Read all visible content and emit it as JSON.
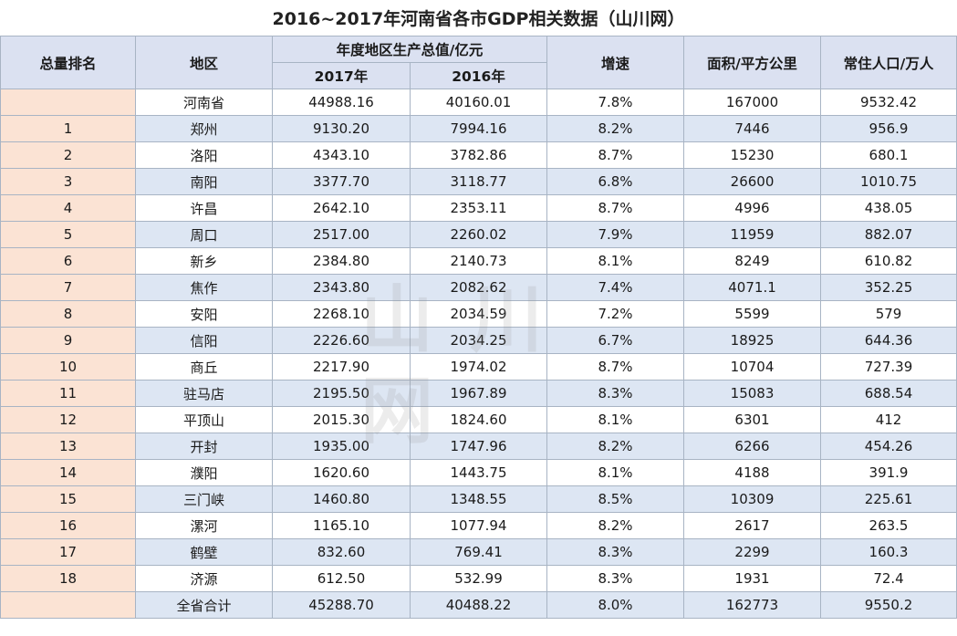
{
  "title": "2016~2017年河南省各市GDP相关数据（山川网）",
  "watermark": "山川网",
  "headers": {
    "rank": "总量排名",
    "region": "地区",
    "gdp_group": "年度地区生产总值/亿元",
    "y2017": "2017年",
    "y2016": "2016年",
    "growth": "增速",
    "area": "面积/平方公里",
    "population": "常住人口/万人"
  },
  "rows": [
    {
      "rank": "",
      "region": "河南省",
      "y2017": "44988.16",
      "y2016": "40160.01",
      "growth": "7.8%",
      "area": "167000",
      "population": "9532.42"
    },
    {
      "rank": "1",
      "region": "郑州",
      "y2017": "9130.20",
      "y2016": "7994.16",
      "growth": "8.2%",
      "area": "7446",
      "population": "956.9"
    },
    {
      "rank": "2",
      "region": "洛阳",
      "y2017": "4343.10",
      "y2016": "3782.86",
      "growth": "8.7%",
      "area": "15230",
      "population": "680.1"
    },
    {
      "rank": "3",
      "region": "南阳",
      "y2017": "3377.70",
      "y2016": "3118.77",
      "growth": "6.8%",
      "area": "26600",
      "population": "1010.75"
    },
    {
      "rank": "4",
      "region": "许昌",
      "y2017": "2642.10",
      "y2016": "2353.11",
      "growth": "8.7%",
      "area": "4996",
      "population": "438.05"
    },
    {
      "rank": "5",
      "region": "周口",
      "y2017": "2517.00",
      "y2016": "2260.02",
      "growth": "7.9%",
      "area": "11959",
      "population": "882.07"
    },
    {
      "rank": "6",
      "region": "新乡",
      "y2017": "2384.80",
      "y2016": "2140.73",
      "growth": "8.1%",
      "area": "8249",
      "population": "610.82"
    },
    {
      "rank": "7",
      "region": "焦作",
      "y2017": "2343.80",
      "y2016": "2082.62",
      "growth": "7.4%",
      "area": "4071.1",
      "population": "352.25"
    },
    {
      "rank": "8",
      "region": "安阳",
      "y2017": "2268.10",
      "y2016": "2034.59",
      "growth": "7.2%",
      "area": "5599",
      "population": "579"
    },
    {
      "rank": "9",
      "region": "信阳",
      "y2017": "2226.60",
      "y2016": "2034.25",
      "growth": "6.7%",
      "area": "18925",
      "population": "644.36"
    },
    {
      "rank": "10",
      "region": "商丘",
      "y2017": "2217.90",
      "y2016": "1974.02",
      "growth": "8.7%",
      "area": "10704",
      "population": "727.39"
    },
    {
      "rank": "11",
      "region": "驻马店",
      "y2017": "2195.50",
      "y2016": "1967.89",
      "growth": "8.3%",
      "area": "15083",
      "population": "688.54"
    },
    {
      "rank": "12",
      "region": "平顶山",
      "y2017": "2015.30",
      "y2016": "1824.60",
      "growth": "8.1%",
      "area": "6301",
      "population": "412"
    },
    {
      "rank": "13",
      "region": "开封",
      "y2017": "1935.00",
      "y2016": "1747.96",
      "growth": "8.2%",
      "area": "6266",
      "population": "454.26"
    },
    {
      "rank": "14",
      "region": "濮阳",
      "y2017": "1620.60",
      "y2016": "1443.75",
      "growth": "8.1%",
      "area": "4188",
      "population": "391.9"
    },
    {
      "rank": "15",
      "region": "三门峡",
      "y2017": "1460.80",
      "y2016": "1348.55",
      "growth": "8.5%",
      "area": "10309",
      "population": "225.61"
    },
    {
      "rank": "16",
      "region": "漯河",
      "y2017": "1165.10",
      "y2016": "1077.94",
      "growth": "8.2%",
      "area": "2617",
      "population": "263.5"
    },
    {
      "rank": "17",
      "region": "鹤壁",
      "y2017": "832.60",
      "y2016": "769.41",
      "growth": "8.3%",
      "area": "2299",
      "population": "160.3"
    },
    {
      "rank": "18",
      "region": "济源",
      "y2017": "612.50",
      "y2016": "532.99",
      "growth": "8.3%",
      "area": "1931",
      "population": "72.4"
    },
    {
      "rank": "",
      "region": "全省合计",
      "y2017": "45288.70",
      "y2016": "40488.22",
      "growth": "8.0%",
      "area": "162773",
      "population": "9550.2"
    }
  ],
  "colors": {
    "header_bg": "#dbe1f1",
    "rank_bg": "#fbe3d4",
    "alt_row_bg": "#dde6f3",
    "border": "#a8b4c4"
  }
}
